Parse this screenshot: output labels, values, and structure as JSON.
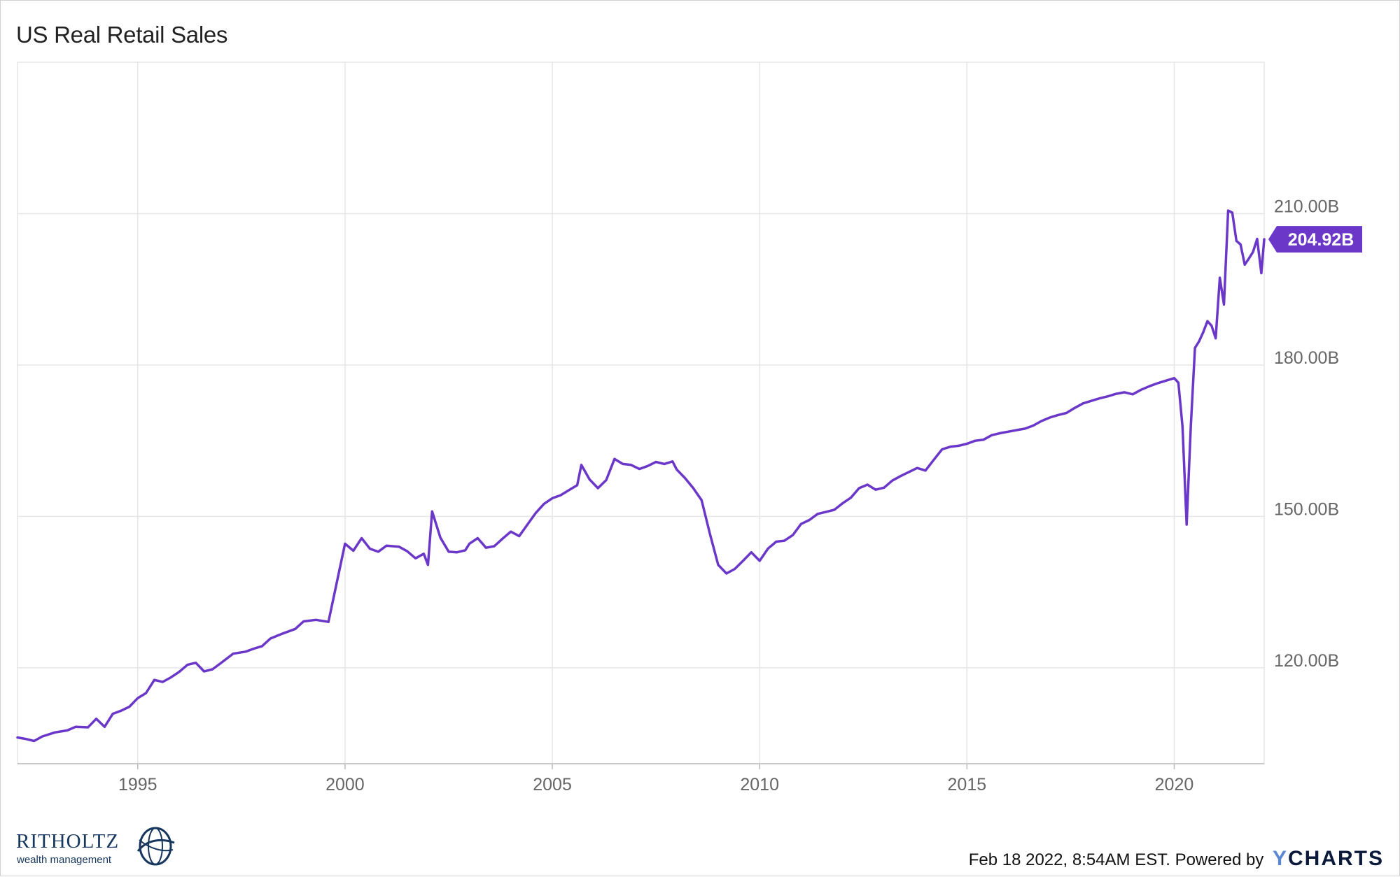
{
  "title": "US Real Retail Sales",
  "footer": {
    "timestamp": "Feb 18 2022, 8:54AM EST.",
    "powered_by": "Powered by",
    "brand_y": "Y",
    "brand_rest": "CHARTS"
  },
  "logo": {
    "name": "RITHOLTZ",
    "sub": "wealth management"
  },
  "colors": {
    "line": "#6a37c9",
    "grid": "#e6e6e6",
    "axis": "#bbbbbb"
  },
  "chart_data": {
    "type": "line",
    "title": "US Real Retail Sales",
    "xlim": [
      1992.1,
      2022.17
    ],
    "ylim": [
      101,
      240
    ],
    "x_ticks": [
      1995,
      2000,
      2005,
      2010,
      2015,
      2020
    ],
    "x_tick_labels": [
      "1995",
      "2000",
      "2005",
      "2010",
      "2015",
      "2020"
    ],
    "y_ticks": [
      120,
      150,
      180,
      210
    ],
    "y_tick_labels": [
      "120.00B",
      "150.00B",
      "180.00B",
      "210.00B"
    ],
    "grid": true,
    "last_value": 204.92,
    "last_value_label": "204.92B",
    "series": [
      {
        "values": [
          [
            1992.1,
            106.2
          ],
          [
            1992.3,
            105.9
          ],
          [
            1992.5,
            105.5
          ],
          [
            1992.7,
            106.4
          ],
          [
            1993.0,
            107.2
          ],
          [
            1993.3,
            107.6
          ],
          [
            1993.5,
            108.3
          ],
          [
            1993.8,
            108.2
          ],
          [
            1994.0,
            109.9
          ],
          [
            1994.2,
            108.3
          ],
          [
            1994.4,
            110.9
          ],
          [
            1994.6,
            111.5
          ],
          [
            1994.8,
            112.3
          ],
          [
            1995.0,
            114.0
          ],
          [
            1995.2,
            115.0
          ],
          [
            1995.4,
            117.6
          ],
          [
            1995.6,
            117.2
          ],
          [
            1995.8,
            118.1
          ],
          [
            1996.0,
            119.2
          ],
          [
            1996.2,
            120.6
          ],
          [
            1996.4,
            121.0
          ],
          [
            1996.6,
            119.3
          ],
          [
            1996.8,
            119.7
          ],
          [
            1997.0,
            120.9
          ],
          [
            1997.3,
            122.8
          ],
          [
            1997.6,
            123.2
          ],
          [
            1997.8,
            123.8
          ],
          [
            1998.0,
            124.3
          ],
          [
            1998.2,
            125.8
          ],
          [
            1998.5,
            126.8
          ],
          [
            1998.8,
            127.7
          ],
          [
            1999.0,
            129.2
          ],
          [
            1999.3,
            129.5
          ],
          [
            1999.6,
            129.1
          ],
          [
            2000.0,
            144.6
          ],
          [
            2000.2,
            143.2
          ],
          [
            2000.4,
            145.7
          ],
          [
            2000.6,
            143.6
          ],
          [
            2000.8,
            143.0
          ],
          [
            2001.0,
            144.2
          ],
          [
            2001.3,
            144.0
          ],
          [
            2001.5,
            143.1
          ],
          [
            2001.7,
            141.7
          ],
          [
            2001.9,
            142.6
          ],
          [
            2002.0,
            140.4
          ],
          [
            2002.1,
            151.0
          ],
          [
            2002.3,
            145.8
          ],
          [
            2002.5,
            143.0
          ],
          [
            2002.7,
            142.9
          ],
          [
            2002.9,
            143.3
          ],
          [
            2003.0,
            144.6
          ],
          [
            2003.2,
            145.7
          ],
          [
            2003.4,
            143.8
          ],
          [
            2003.6,
            144.1
          ],
          [
            2003.8,
            145.6
          ],
          [
            2004.0,
            147.0
          ],
          [
            2004.2,
            146.1
          ],
          [
            2004.4,
            148.4
          ],
          [
            2004.6,
            150.7
          ],
          [
            2004.8,
            152.5
          ],
          [
            2005.0,
            153.6
          ],
          [
            2005.2,
            154.2
          ],
          [
            2005.4,
            155.2
          ],
          [
            2005.6,
            156.2
          ],
          [
            2005.7,
            160.2
          ],
          [
            2005.9,
            157.3
          ],
          [
            2006.1,
            155.6
          ],
          [
            2006.3,
            157.2
          ],
          [
            2006.5,
            161.4
          ],
          [
            2006.7,
            160.4
          ],
          [
            2006.9,
            160.2
          ],
          [
            2007.1,
            159.4
          ],
          [
            2007.3,
            160.0
          ],
          [
            2007.5,
            160.8
          ],
          [
            2007.7,
            160.4
          ],
          [
            2007.9,
            160.9
          ],
          [
            2008.0,
            159.3
          ],
          [
            2008.2,
            157.6
          ],
          [
            2008.4,
            155.6
          ],
          [
            2008.6,
            153.2
          ],
          [
            2008.8,
            146.6
          ],
          [
            2009.0,
            140.4
          ],
          [
            2009.2,
            138.7
          ],
          [
            2009.4,
            139.6
          ],
          [
            2009.6,
            141.2
          ],
          [
            2009.8,
            142.9
          ],
          [
            2010.0,
            141.2
          ],
          [
            2010.2,
            143.6
          ],
          [
            2010.4,
            145.0
          ],
          [
            2010.6,
            145.2
          ],
          [
            2010.8,
            146.3
          ],
          [
            2011.0,
            148.5
          ],
          [
            2011.2,
            149.3
          ],
          [
            2011.4,
            150.5
          ],
          [
            2011.6,
            150.9
          ],
          [
            2011.8,
            151.3
          ],
          [
            2012.0,
            152.6
          ],
          [
            2012.2,
            153.7
          ],
          [
            2012.4,
            155.6
          ],
          [
            2012.6,
            156.3
          ],
          [
            2012.8,
            155.3
          ],
          [
            2013.0,
            155.7
          ],
          [
            2013.2,
            157.1
          ],
          [
            2013.4,
            158.0
          ],
          [
            2013.6,
            158.8
          ],
          [
            2013.8,
            159.6
          ],
          [
            2014.0,
            159.1
          ],
          [
            2014.2,
            161.2
          ],
          [
            2014.4,
            163.3
          ],
          [
            2014.6,
            163.8
          ],
          [
            2014.8,
            164.0
          ],
          [
            2015.0,
            164.4
          ],
          [
            2015.2,
            165.0
          ],
          [
            2015.4,
            165.2
          ],
          [
            2015.6,
            166.1
          ],
          [
            2015.8,
            166.5
          ],
          [
            2016.0,
            166.8
          ],
          [
            2016.2,
            167.1
          ],
          [
            2016.4,
            167.4
          ],
          [
            2016.6,
            168.0
          ],
          [
            2016.8,
            168.9
          ],
          [
            2017.0,
            169.6
          ],
          [
            2017.2,
            170.1
          ],
          [
            2017.4,
            170.5
          ],
          [
            2017.6,
            171.5
          ],
          [
            2017.8,
            172.4
          ],
          [
            2018.0,
            172.9
          ],
          [
            2018.2,
            173.4
          ],
          [
            2018.4,
            173.8
          ],
          [
            2018.6,
            174.3
          ],
          [
            2018.8,
            174.6
          ],
          [
            2019.0,
            174.2
          ],
          [
            2019.2,
            175.1
          ],
          [
            2019.4,
            175.8
          ],
          [
            2019.6,
            176.4
          ],
          [
            2019.8,
            176.9
          ],
          [
            2020.0,
            177.4
          ],
          [
            2020.1,
            176.5
          ],
          [
            2020.2,
            167.8
          ],
          [
            2020.3,
            148.4
          ],
          [
            2020.4,
            168.0
          ],
          [
            2020.5,
            183.4
          ],
          [
            2020.6,
            184.7
          ],
          [
            2020.7,
            186.5
          ],
          [
            2020.8,
            188.7
          ],
          [
            2020.9,
            187.8
          ],
          [
            2021.0,
            185.3
          ],
          [
            2021.1,
            197.3
          ],
          [
            2021.2,
            192.0
          ],
          [
            2021.3,
            210.6
          ],
          [
            2021.4,
            210.2
          ],
          [
            2021.5,
            204.6
          ],
          [
            2021.6,
            203.9
          ],
          [
            2021.7,
            199.9
          ],
          [
            2021.8,
            201.1
          ],
          [
            2021.9,
            202.4
          ],
          [
            2022.0,
            205.0
          ],
          [
            2022.1,
            198.2
          ],
          [
            2022.17,
            204.92
          ]
        ]
      }
    ]
  }
}
